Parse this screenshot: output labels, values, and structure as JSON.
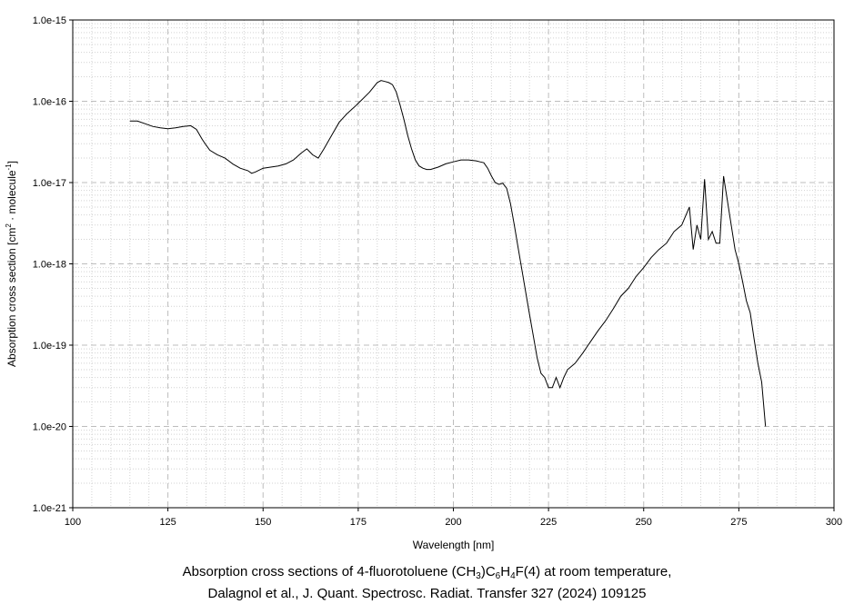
{
  "chart_data": {
    "type": "line",
    "xlabel": "Wavelength [nm]",
    "ylabel": {
      "main": "Absorption cross section [cm",
      "sup1": "2",
      "mid": " · molecule",
      "sup2": "-1",
      "end": "]"
    },
    "xlim": [
      100,
      300
    ],
    "ylim": [
      1e-21,
      1e-15
    ],
    "yscale": "log",
    "grid": true,
    "x_ticks": [
      "100",
      "125",
      "150",
      "175",
      "200",
      "225",
      "250",
      "275",
      "300"
    ],
    "y_ticks": [
      "1.0e-21",
      "1.0e-20",
      "1.0e-19",
      "1.0e-18",
      "1.0e-17",
      "1.0e-16",
      "1.0e-15"
    ],
    "series": [
      {
        "color": "#000000",
        "x": [
          115,
          117,
          119,
          121,
          123,
          125,
          127,
          129,
          131,
          132.5,
          134,
          135,
          136,
          138,
          140,
          142,
          144,
          146,
          147,
          148,
          150,
          152,
          154,
          156,
          158,
          160,
          161.5,
          163,
          164.5,
          166,
          168,
          170,
          172,
          174,
          176,
          178,
          180,
          181,
          182,
          183,
          184,
          185,
          186,
          187,
          188,
          189,
          190,
          191,
          192,
          193,
          194,
          196,
          198,
          200,
          202,
          204,
          206,
          207,
          208,
          209,
          210,
          211,
          212,
          213,
          214,
          215,
          216,
          217,
          218,
          219,
          220,
          221,
          222,
          223,
          224,
          225,
          226,
          227,
          228,
          229,
          230,
          232,
          234,
          236,
          238,
          240,
          242,
          244,
          246,
          248,
          250,
          252,
          254,
          256,
          258,
          260,
          262,
          263,
          264,
          265,
          266,
          267,
          268,
          269,
          270,
          271,
          272,
          273,
          274,
          275,
          276,
          277,
          278,
          279,
          280,
          281,
          282
        ],
        "y": [
          5.7e-17,
          5.7e-17,
          5.3e-17,
          4.9e-17,
          4.7e-17,
          4.6e-17,
          4.7e-17,
          4.9e-17,
          5e-17,
          4.5e-17,
          3.4e-17,
          2.9e-17,
          2.5e-17,
          2.2e-17,
          2e-17,
          1.7e-17,
          1.5e-17,
          1.4e-17,
          1.3e-17,
          1.35e-17,
          1.5e-17,
          1.55e-17,
          1.6e-17,
          1.7e-17,
          1.9e-17,
          2.3e-17,
          2.6e-17,
          2.2e-17,
          2e-17,
          2.6e-17,
          3.8e-17,
          5.5e-17,
          7e-17,
          8.5e-17,
          1.05e-16,
          1.3e-16,
          1.7e-16,
          1.8e-16,
          1.75e-16,
          1.7e-16,
          1.6e-16,
          1.3e-16,
          9e-17,
          6e-17,
          3.8e-17,
          2.6e-17,
          1.9e-17,
          1.6e-17,
          1.5e-17,
          1.45e-17,
          1.45e-17,
          1.55e-17,
          1.7e-17,
          1.8e-17,
          1.9e-17,
          1.9e-17,
          1.85e-17,
          1.8e-17,
          1.75e-17,
          1.5e-17,
          1.2e-17,
          1e-17,
          9.5e-18,
          9.8e-18,
          8.5e-18,
          5.5e-18,
          3e-18,
          1.6e-18,
          8.5e-19,
          4.5e-19,
          2.4e-19,
          1.3e-19,
          7e-20,
          4.5e-20,
          4e-20,
          3e-20,
          3e-20,
          4e-20,
          3e-20,
          4e-20,
          5e-20,
          6e-20,
          8e-20,
          1.1e-19,
          1.5e-19,
          2e-19,
          2.8e-19,
          4e-19,
          5e-19,
          7e-19,
          9e-19,
          1.2e-18,
          1.5e-18,
          1.8e-18,
          2.5e-18,
          3e-18,
          5e-18,
          1.5e-18,
          3e-18,
          2e-18,
          1.1e-17,
          2e-18,
          2.5e-18,
          1.8e-18,
          1.8e-18,
          1.2e-17,
          6e-18,
          3e-18,
          1.5e-18,
          1e-18,
          6e-19,
          3.5e-19,
          2.5e-19,
          1.2e-19,
          6e-20,
          3.5e-20,
          1e-20
        ]
      }
    ]
  },
  "caption": {
    "line1_a": "Absorption cross sections of 4-fluorotoluene (CH",
    "sub1": "3",
    "line1_b": ")C",
    "sub2": "6",
    "line1_c": "H",
    "sub3": "4",
    "line1_d": "F(4) at room temperature,",
    "line2": "Dalagnol et al., J. Quant. Spectrosc. Radiat. Transfer 327 (2024) 109125"
  }
}
